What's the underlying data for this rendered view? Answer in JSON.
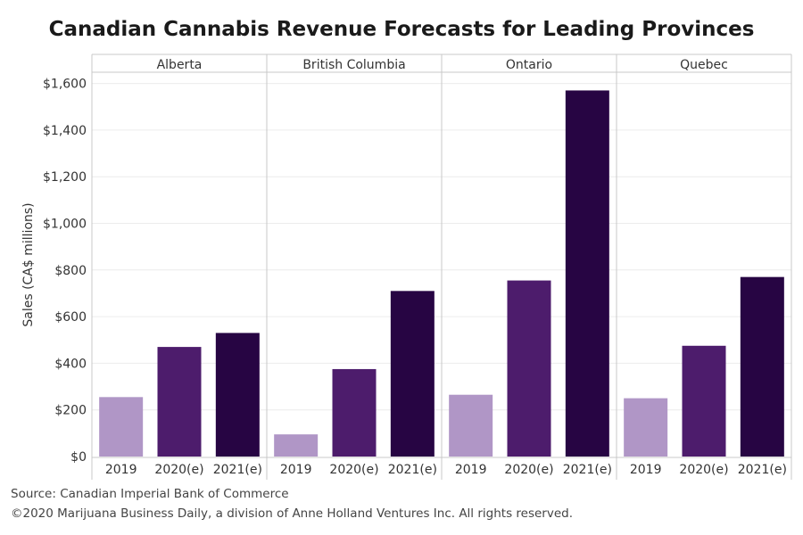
{
  "chart_data": {
    "type": "bar",
    "title": "Canadian Cannabis Revenue Forecasts for Leading Provinces",
    "ylabel": "Sales (CA$ millions)",
    "xlabel": "",
    "ylim": [
      0,
      1650
    ],
    "yticks": [
      0,
      200,
      400,
      600,
      800,
      1000,
      1200,
      1400,
      1600
    ],
    "ytick_labels": [
      "$0",
      "$200",
      "$400",
      "$600",
      "$800",
      "$1,000",
      "$1,200",
      "$1,400",
      "$1,600"
    ],
    "grid": true,
    "categories": [
      "2019",
      "2020(e)",
      "2021(e)"
    ],
    "colors": [
      "#b096c6",
      "#4d1c6c",
      "#270543"
    ],
    "panels": [
      {
        "name": "Alberta",
        "values": [
          255,
          470,
          530
        ]
      },
      {
        "name": "British Columbia",
        "values": [
          95,
          375,
          710
        ]
      },
      {
        "name": "Ontario",
        "values": [
          265,
          755,
          1570
        ]
      },
      {
        "name": "Quebec",
        "values": [
          250,
          475,
          770
        ]
      }
    ]
  },
  "footer": {
    "source": "Source: Canadian Imperial Bank of Commerce",
    "copyright": "©2020 Marijuana Business Daily, a division of Anne Holland Ventures Inc. All rights reserved."
  }
}
